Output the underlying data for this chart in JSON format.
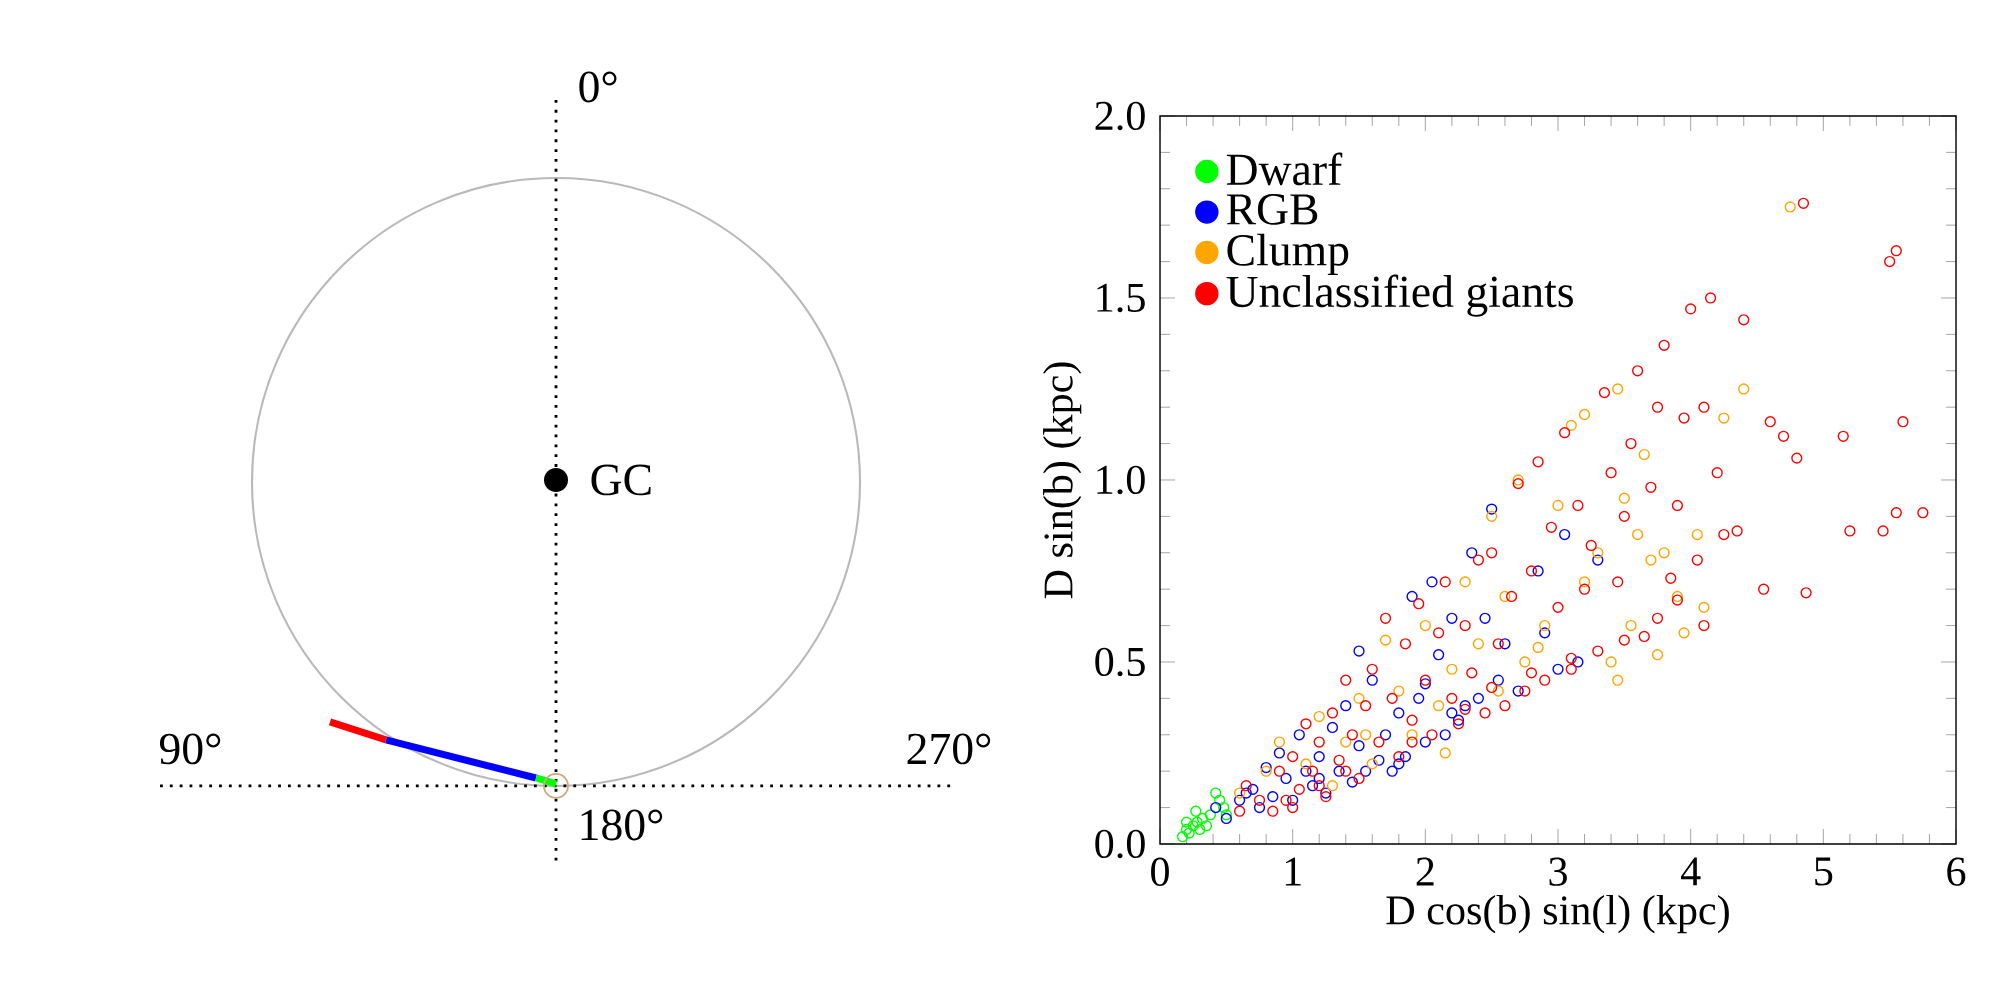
{
  "chart_data": [
    {
      "type": "other",
      "annotations": [
        "0°",
        "90°",
        "270°",
        "180°",
        "GC"
      ]
    },
    {
      "type": "scatter",
      "xlabel": "D cos(b) sin(l) (kpc)",
      "ylabel": "D sin(b) (kpc)",
      "xlim": [
        0,
        6
      ],
      "ylim": [
        0,
        2
      ],
      "xticks": [
        0,
        1,
        2,
        3,
        4,
        5,
        6
      ],
      "yticks": [
        {
          "value": 0,
          "label": "0.0"
        },
        {
          "value": 0.5,
          "label": "0.5"
        },
        {
          "value": 1,
          "label": "1.0"
        },
        {
          "value": 1.5,
          "label": "1.5"
        },
        {
          "value": 2,
          "label": "2.0"
        }
      ],
      "legend": "top left",
      "marker": "circle",
      "series": [
        {
          "name": "Dwarf",
          "color": "#00ff00",
          "x": [
            0.17,
            0.2,
            0.22,
            0.25,
            0.28,
            0.3,
            0.32,
            0.35,
            0.38,
            0.42,
            0.45,
            0.48,
            0.5,
            0.27,
            0.2
          ],
          "values": [
            0.02,
            0.04,
            0.03,
            0.05,
            0.06,
            0.04,
            0.07,
            0.05,
            0.08,
            0.14,
            0.12,
            0.1,
            0.08,
            0.09,
            0.06
          ]
        },
        {
          "name": "RGB",
          "color": "#0000ff",
          "x": [
            0.42,
            0.5,
            0.6,
            0.7,
            0.75,
            0.8,
            0.85,
            0.9,
            0.95,
            1.0,
            1.05,
            1.1,
            1.15,
            1.2,
            1.25,
            1.3,
            1.35,
            1.4,
            1.45,
            1.5,
            1.55,
            1.6,
            1.65,
            1.7,
            1.75,
            1.8,
            1.85,
            1.9,
            1.95,
            2.0,
            2.05,
            2.1,
            2.15,
            2.2,
            2.25,
            2.3,
            2.35,
            2.4,
            2.45,
            2.5,
            2.55,
            2.6,
            2.7,
            2.85,
            3.0,
            3.05,
            3.15,
            2.0,
            1.5,
            1.2,
            0.65,
            2.9,
            3.3,
            2.2,
            1.8
          ],
          "values": [
            0.1,
            0.07,
            0.12,
            0.15,
            0.1,
            0.21,
            0.13,
            0.25,
            0.18,
            0.12,
            0.3,
            0.2,
            0.16,
            0.24,
            0.14,
            0.32,
            0.2,
            0.38,
            0.17,
            0.27,
            0.2,
            0.45,
            0.23,
            0.3,
            0.2,
            0.36,
            0.24,
            0.68,
            0.4,
            0.28,
            0.72,
            0.52,
            0.3,
            0.36,
            0.34,
            0.38,
            0.8,
            0.4,
            0.62,
            0.92,
            0.45,
            0.55,
            0.42,
            0.75,
            0.48,
            0.85,
            0.5,
            0.44,
            0.53,
            0.18,
            0.14,
            0.58,
            0.78,
            0.62,
            0.22
          ]
        },
        {
          "name": "Clump",
          "color": "#ffa500",
          "x": [
            0.6,
            0.8,
            0.9,
            1.1,
            1.2,
            1.3,
            1.4,
            1.5,
            1.6,
            1.7,
            1.8,
            1.9,
            2.0,
            2.1,
            2.2,
            2.3,
            2.4,
            2.5,
            2.55,
            2.6,
            2.7,
            2.75,
            2.9,
            3.0,
            3.1,
            3.2,
            3.3,
            3.4,
            3.45,
            3.5,
            3.55,
            3.6,
            3.65,
            3.7,
            3.75,
            3.8,
            3.9,
            3.95,
            4.05,
            4.1,
            4.25,
            4.4,
            4.75,
            3.2,
            2.85,
            1.55,
            3.45,
            2.15
          ],
          "values": [
            0.14,
            0.2,
            0.28,
            0.22,
            0.35,
            0.16,
            0.28,
            0.4,
            0.22,
            0.56,
            0.42,
            0.3,
            0.6,
            0.38,
            0.48,
            0.72,
            0.55,
            0.9,
            0.42,
            0.68,
            1.0,
            0.5,
            0.6,
            0.93,
            1.15,
            0.72,
            0.8,
            0.5,
            1.25,
            0.95,
            0.6,
            0.85,
            1.07,
            0.78,
            0.52,
            0.8,
            0.68,
            0.58,
            0.85,
            0.65,
            1.17,
            1.25,
            1.75,
            1.18,
            0.54,
            0.3,
            0.45,
            0.25
          ]
        },
        {
          "name": "Unclassified giants",
          "color": "#ff0000",
          "x": [
            0.6,
            0.65,
            0.75,
            0.85,
            0.9,
            1.0,
            1.0,
            1.05,
            1.1,
            1.15,
            1.2,
            1.25,
            1.3,
            1.35,
            1.4,
            1.45,
            1.5,
            1.55,
            1.6,
            1.65,
            1.7,
            1.75,
            1.8,
            1.85,
            1.9,
            1.95,
            2.0,
            2.05,
            2.1,
            2.15,
            2.2,
            2.25,
            2.3,
            2.35,
            2.4,
            2.45,
            2.5,
            2.55,
            2.6,
            2.65,
            2.7,
            2.75,
            2.8,
            2.85,
            2.9,
            2.95,
            3.0,
            3.05,
            3.1,
            3.15,
            3.2,
            3.25,
            3.3,
            3.35,
            3.4,
            3.45,
            3.5,
            3.55,
            3.6,
            3.65,
            3.7,
            3.75,
            3.8,
            3.85,
            3.9,
            3.95,
            4.0,
            4.05,
            4.1,
            4.15,
            4.2,
            4.25,
            4.35,
            4.4,
            4.55,
            4.6,
            4.7,
            4.8,
            4.85,
            4.87,
            5.15,
            5.2,
            5.45,
            5.5,
            5.55,
            5.55,
            5.6,
            5.75,
            2.3,
            2.5,
            2.8,
            3.1,
            3.5,
            1.9,
            1.4,
            1.2,
            0.95,
            3.75,
            3.9,
            4.1
          ],
          "values": [
            0.09,
            0.16,
            0.12,
            0.09,
            0.2,
            0.24,
            0.1,
            0.15,
            0.33,
            0.2,
            0.28,
            0.13,
            0.36,
            0.23,
            0.45,
            0.3,
            0.18,
            0.38,
            0.48,
            0.28,
            0.62,
            0.4,
            0.24,
            0.55,
            0.34,
            0.66,
            0.45,
            0.3,
            0.58,
            0.72,
            0.4,
            0.33,
            0.6,
            0.47,
            0.78,
            0.36,
            0.8,
            0.55,
            0.38,
            0.68,
            0.99,
            0.42,
            0.75,
            1.05,
            0.45,
            0.87,
            0.65,
            1.13,
            0.48,
            0.93,
            0.7,
            0.82,
            0.53,
            1.24,
            1.02,
            0.72,
            0.9,
            1.1,
            1.3,
            0.57,
            0.98,
            1.2,
            1.37,
            0.73,
            0.93,
            1.17,
            1.47,
            0.78,
            1.2,
            1.5,
            1.02,
            0.85,
            0.86,
            1.44,
            0.7,
            1.16,
            1.12,
            1.06,
            1.76,
            0.69,
            1.12,
            0.86,
            0.86,
            1.6,
            1.63,
            0.91,
            1.16,
            0.91,
            0.37,
            0.43,
            0.47,
            0.51,
            0.56,
            0.28,
            0.2,
            0.16,
            0.12,
            0.62,
            0.67,
            0.6
          ]
        }
      ]
    }
  ]
}
